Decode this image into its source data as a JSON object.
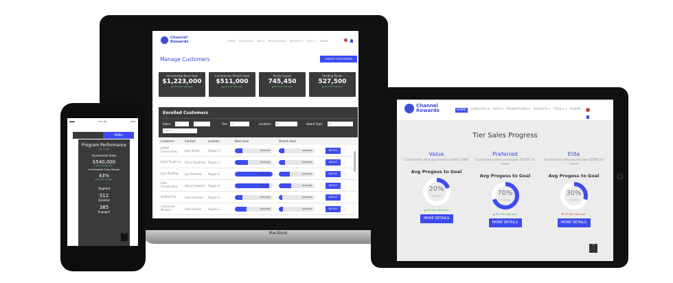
{
  "app": {
    "brand_line1": "Channel",
    "brand_line2": "Rewards",
    "brand_color": "#3d4bf0"
  },
  "laptop": {
    "device_label": "MacBook",
    "nav": [
      "HOME",
      "CATALOGS ▾",
      "INFO ▾",
      "PROMOTIONS ▾",
      "REPORTS ▾",
      "TOOLS ▾",
      "ADMIN"
    ],
    "page_title": "Manage Customers",
    "target_button": "TARGET CUSTOMERS",
    "kpis": [
      {
        "label": "Incremental Base Goal",
        "value": "$1,223,000",
        "trend": "▲ 12% from last year"
      },
      {
        "label": "Incremental Stretch Goal",
        "value": "$511,000",
        "trend": "▲ 4% from last year"
      },
      {
        "label": "Points Issued",
        "value": "745,450",
        "trend": "▲ 8% from last year"
      },
      {
        "label": "Pending Points",
        "value": "527,500",
        "trend": "▲ 7% from last year"
      }
    ],
    "enrolled": {
      "title": "Enrolled Customers",
      "sales_label": "Sales:",
      "sales_min": "$ 0",
      "sales_max": "$ 0",
      "tier_label": "Tier:",
      "tier_value": "All",
      "location_label": "Location:",
      "location_value": "All",
      "award_label": "Award Type:",
      "award_value": "All",
      "search_placeholder": "Search",
      "columns": [
        "Customer",
        "Contact",
        "Location",
        "Base Goal",
        "Stretch Goal"
      ],
      "details_label": "DETAILS",
      "rows": [
        {
          "customer": "JoMAP Contracting",
          "contact": "John Smith",
          "location": "Region 1",
          "base": 0.2,
          "base_goal": "$500,000",
          "stretch": 0.15,
          "stretch_goal": "$200,000"
        },
        {
          "customer": "Build Tough Inc",
          "contact": "Dave Goodman",
          "location": "Region 1",
          "base": 0.35,
          "base_goal": "$500,000",
          "stretch": 0.18,
          "stretch_goal": "$200,000"
        },
        {
          "customer": "Jay's Roofing",
          "contact": "Jay Michaels",
          "location": "Region 2",
          "base": 1.0,
          "base_goal": "$500,000",
          "stretch": 0.3,
          "stretch_goal": "$200,000"
        },
        {
          "customer": "Elite Construction",
          "contact": "Henry Howard",
          "location": "Region 9",
          "base": 0.9,
          "base_goal": "$80,000",
          "stretch": 0.35,
          "stretch_goal": "$100,000"
        },
        {
          "customer": "Hatfield Co",
          "contact": "Cash Hendrix",
          "location": "Region 4",
          "base": 0.2,
          "base_goal": "$100,000",
          "stretch": 0.1,
          "stretch_goal": "$200,000"
        },
        {
          "customer": "Contractor Masters",
          "contact": "Sean Baxter",
          "location": "Region 1",
          "base": 0.3,
          "base_goal": "$500,000",
          "stretch": 0.12,
          "stretch_goal": "$200,000"
        }
      ]
    }
  },
  "tablet": {
    "nav": [
      "HOME",
      "CATALOGS ▾",
      "INFO ▾",
      "PROMOTIONS ▾",
      "REPORTS ▾",
      "TOOLS ▾",
      "ADMIN"
    ],
    "title": "Tier Sales Progress",
    "progress_label": "Avg Progess to Goal",
    "complete_label": "Complete",
    "button": "MORE DETAILS",
    "tiers": [
      {
        "name": "Value",
        "desc": "Customers who purchase under 100K",
        "pct": 20,
        "pct_label": "20%",
        "trend": "▲ 5% from last year",
        "trend_color": "#2e9e5b"
      },
      {
        "name": "Preferred",
        "desc": "Customers who purchase $100K or more",
        "pct": 70,
        "pct_label": "70%",
        "trend": "▲ 3% from last year",
        "trend_color": "#2e9e5b"
      },
      {
        "name": "Elite",
        "desc": "Customers who purchase $200K or more",
        "pct": 30,
        "pct_label": "30%",
        "trend": "▼ 2% from last year",
        "trend_color": "#d33"
      }
    ]
  },
  "phone": {
    "status_time": "4:21 PM",
    "status_battery": "100%",
    "menu": "MENU",
    "title": "Program Performance",
    "subtitle": "Year to Date",
    "sales_label": "Incremental Sales",
    "sales_value": "$540,000",
    "sales_trend": "▲ 5% from last year",
    "margin_label": "Incremental Gross Margin",
    "margin_value": "43%",
    "margin_trend": "▲ 3% from last year",
    "targeted_label": "Targeted",
    "targeted_value": "512",
    "enrolled_label": "Enrolled",
    "enrolled_value": "385",
    "engaged_label": "Engaged"
  }
}
